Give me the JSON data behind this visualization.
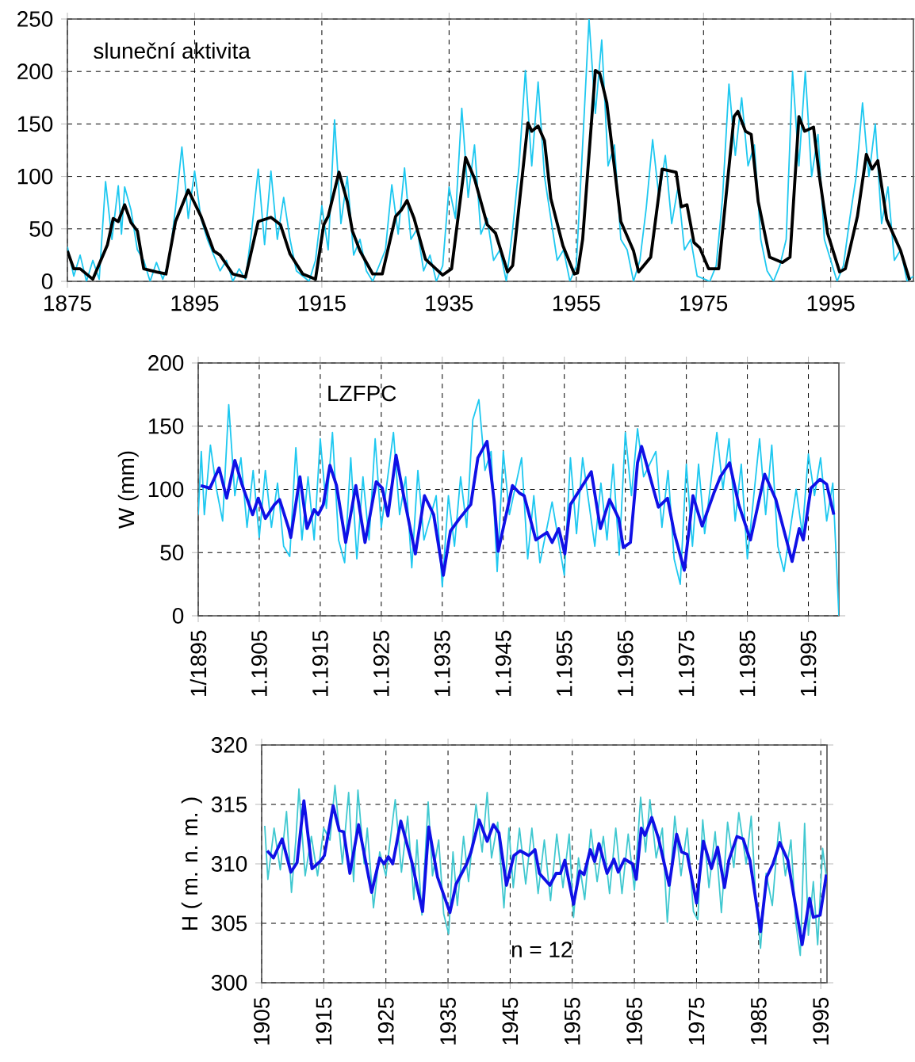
{
  "chart_data": [
    {
      "type": "line",
      "annotations": [
        "sluneční aktivita"
      ],
      "xlim": [
        1875,
        2008
      ],
      "xticks": [
        1875,
        1895,
        1915,
        1935,
        1955,
        1975,
        1995
      ],
      "ylim": [
        0,
        250
      ],
      "yticks": [
        0,
        50,
        100,
        150,
        200,
        250
      ],
      "grid": true,
      "series": [
        {
          "color": "#1ec8f0",
          "x": [
            1875,
            1876,
            1877,
            1878,
            1879,
            1880,
            1881,
            1882,
            1883,
            1883.5,
            1884,
            1885,
            1886,
            1887,
            1888,
            1889,
            1890,
            1891,
            1892,
            1893,
            1894,
            1895,
            1896,
            1897,
            1898,
            1899,
            1900,
            1901,
            1902,
            1903,
            1904,
            1905,
            1906,
            1907,
            1908,
            1909,
            1910,
            1911,
            1913,
            1914,
            1915,
            1916,
            1917,
            1918,
            1919,
            1920,
            1921,
            1922,
            1923,
            1924,
            1925,
            1926,
            1927,
            1928,
            1929,
            1930,
            1931,
            1932,
            1933,
            1934,
            1935,
            1936,
            1937,
            1938,
            1939,
            1940,
            1941,
            1942,
            1943,
            1944,
            1945,
            1946,
            1947,
            1948,
            1949,
            1950,
            1951,
            1952,
            1953,
            1954,
            1955,
            1956,
            1957,
            1958,
            1959,
            1960,
            1961,
            1962,
            1963,
            1964,
            1965,
            1966,
            1967,
            1968,
            1969,
            1970,
            1971,
            1972,
            1973,
            1974,
            1976,
            1977,
            1978,
            1979,
            1980,
            1981,
            1982,
            1983,
            1984,
            1985,
            1986,
            1987,
            1988,
            1989,
            1990,
            1991,
            1992,
            1993,
            1994,
            1995,
            1996,
            1997,
            1998,
            1999,
            2000,
            2001,
            2002,
            2003,
            2004,
            2005,
            2006,
            2007,
            2008
          ],
          "values": [
            33,
            5,
            25,
            0,
            20,
            2,
            95,
            40,
            91,
            45,
            90,
            68,
            30,
            20,
            0,
            18,
            2,
            20,
            70,
            128,
            60,
            105,
            60,
            40,
            null,
            10,
            20,
            0,
            12,
            2,
            50,
            107,
            35,
            105,
            40,
            80,
            40,
            10,
            0,
            20,
            72,
            30,
            154,
            55,
            100,
            25,
            40,
            10,
            0,
            15,
            30,
            92,
            45,
            108,
            40,
            50,
            10,
            25,
            0,
            15,
            90,
            60,
            165,
            80,
            130,
            45,
            60,
            20,
            30,
            0,
            50,
            110,
            201,
            110,
            190,
            100,
            60,
            20,
            30,
            0,
            15,
            130,
            250,
            160,
            230,
            110,
            130,
            40,
            30,
            0,
            20,
            70,
            135,
            80,
            120,
            55,
            90,
            30,
            40,
            5,
            0,
            15,
            80,
            188,
            120,
            175,
            110,
            130,
            40,
            10,
            0,
            15,
            40,
            200,
            110,
            200,
            100,
            140,
            40,
            20,
            0,
            15,
            60,
            100,
            170,
            100,
            150,
            55,
            90,
            20,
            30,
            0,
            5
          ]
        },
        {
          "color": "#000000",
          "x": [
            1875,
            1876,
            1877,
            1879,
            1881.3,
            1882.2,
            1883,
            1884,
            1885,
            1886,
            1887,
            1889,
            1890.5,
            1892,
            1894,
            1896,
            1898,
            1899,
            1901,
            1903,
            1905,
            1907,
            1908.5,
            1910,
            1912,
            1914,
            1915.3,
            1916,
            1917.7,
            1919,
            1919.8,
            1921,
            1923,
            1924.5,
            1926.6,
            1927.5,
            1928.4,
            1929.5,
            1931.3,
            1934,
            1935.4,
            1937.6,
            1939,
            1941,
            1942.3,
            1944.2,
            1945,
            1947.4,
            1948,
            1949,
            1950,
            1951,
            1952.9,
            1954.7,
            1955.2,
            1956,
            1958,
            1958.7,
            1959.8,
            1962,
            1964,
            1964.8,
            1966.7,
            1968.5,
            1970.7,
            1971.5,
            1972.4,
            1973.5,
            1974.4,
            1975.8,
            1977.4,
            1979.8,
            1980.4,
            1981.6,
            1982.5,
            1983.6,
            1985.4,
            1987.4,
            1988.6,
            1990,
            1990.9,
            1992.3,
            1993.2,
            1994.5,
            1996.4,
            1997.3,
            1999.2,
            2000.6,
            2001.5,
            2002.4,
            2003.8,
            2006,
            2007.4
          ],
          "values": [
            29,
            12,
            12,
            2,
            35,
            60,
            57,
            73,
            56,
            48,
            12,
            9,
            7,
            57,
            87,
            62,
            29,
            25,
            7,
            4,
            57,
            61,
            54,
            26,
            7,
            2,
            54,
            62,
            104,
            76,
            48,
            29,
            7,
            7,
            62,
            68,
            77,
            60,
            21,
            6,
            12,
            118,
            98,
            54,
            46,
            9,
            15,
            151,
            143,
            148,
            134,
            79,
            34,
            7,
            8,
            40,
            201,
            198,
            170,
            57,
            29,
            9,
            23,
            107,
            104,
            71,
            73,
            37,
            32,
            12,
            12,
            157,
            162,
            143,
            140,
            76,
            23,
            18,
            23,
            157,
            143,
            147,
            101,
            46,
            9,
            12,
            62,
            121,
            107,
            115,
            59,
            29,
            1
          ]
        }
      ]
    },
    {
      "type": "line",
      "annotations": [
        "LZFPC"
      ],
      "ylabel": "W (mm)",
      "xlim": [
        "1895-01",
        "2000-01"
      ],
      "xticks": [
        {
          "value": "1895-01",
          "label": "1/1895"
        },
        {
          "value": "1905-01",
          "label": "1.1905"
        },
        {
          "value": "1915-01",
          "label": "1.1915"
        },
        {
          "value": "1925-01",
          "label": "1.1925"
        },
        {
          "value": "1935-01",
          "label": "1.1935"
        },
        {
          "value": "1945-01",
          "label": "1.1945"
        },
        {
          "value": "1955-01",
          "label": "1.1955"
        },
        {
          "value": "1965-01",
          "label": "1.1965"
        },
        {
          "value": "1975-01",
          "label": "1.1975"
        },
        {
          "value": "1985-01",
          "label": "1.1985"
        },
        {
          "value": "1995-01",
          "label": "1.1995"
        }
      ],
      "ylim": [
        0,
        200
      ],
      "yticks": [
        0,
        50,
        100,
        150,
        200
      ],
      "grid": true,
      "series": [
        {
          "color": "#1ec8f0",
          "x": [
            "1895-01",
            "1895-07",
            "1896-01",
            "1897-01",
            "1898-01",
            "1899-01",
            "1900-01",
            "1901-01",
            "1902-01",
            "1903-01",
            "1904-01",
            "1905-01",
            "1906-01",
            "1907-01",
            "1908-01",
            "1909-01",
            "1910-01",
            "1911-01",
            "1912-01",
            "1913-01",
            "1914-01",
            "1915-01",
            "1916-01",
            "1917-01",
            "1918-01",
            "1919-01",
            "1920-01",
            "1921-01",
            "1922-01",
            "1923-01",
            "1924-01",
            "1925-01",
            "1927-01",
            "1928-01",
            "1929-01",
            "1930-01",
            "1931-01",
            "1932-01",
            "1934-01",
            "1935-01",
            "1936-01",
            "1937-01",
            "1938-01",
            "1939-01",
            "1940-01",
            "1941-01",
            "1942-01",
            "1943-01",
            "1944-01",
            "1945-01",
            "1946-01",
            "1948-01",
            "1949-01",
            "1950-01",
            "1951-01",
            "1953-01",
            "1955-01",
            "1956-01",
            "1957-01",
            "1958-01",
            "1960-01",
            "1961-01",
            "1962-01",
            "1963-01",
            "1964-01",
            "1965-01",
            "1966-01",
            "1967-01",
            "1968-01",
            "1970-01",
            "1971-01",
            "1972-01",
            "1973-01",
            "1974-01",
            "1975-01",
            "1976-01",
            "1977-01",
            "1978-01",
            "1980-01",
            "1981-01",
            "1982-01",
            "1983-01",
            "1984-01",
            "1985-01",
            "1987-01",
            "1988-01",
            "1989-01",
            "1990-01",
            "1991-01",
            "1993-01",
            "1994-01",
            "1995-01",
            "1996-01",
            "1997-01",
            "1998-01",
            "1999-01",
            "2000-01"
          ],
          "values": [
            80,
            130,
            80,
            135,
            100,
            75,
            167,
            95,
            125,
            70,
            115,
            62,
            115,
            70,
            105,
            55,
            47,
            133,
            60,
            110,
            60,
            140,
            85,
            145,
            60,
            42,
            125,
            45,
            110,
            60,
            140,
            70,
            145,
            80,
            110,
            38,
            115,
            60,
            95,
            23,
            95,
            55,
            110,
            70,
            155,
            171,
            115,
            130,
            35,
            130,
            80,
            125,
            45,
            95,
            42,
            90,
            32,
            125,
            65,
            125,
            55,
            105,
            60,
            120,
            48,
            145,
            95,
            148,
            110,
            130,
            70,
            115,
            45,
            25,
            120,
            55,
            120,
            65,
            145,
            100,
            140,
            75,
            120,
            45,
            140,
            80,
            135,
            55,
            35,
            100,
            65,
            128,
            95,
            125,
            75,
            105,
            0
          ]
        },
        {
          "color": "#1010e6",
          "x": [
            "1895-06",
            "1896-12",
            "1898-06",
            "1899-09",
            "1901-01",
            "1902-03",
            "1903-12",
            "1904-11",
            "1906-01",
            "1907-07",
            "1908-05",
            "1909-11",
            "1910-03",
            "1911-09",
            "1912-11",
            "1914-01",
            "1914-09",
            "1915-07",
            "1916-08",
            "1917-09",
            "1919-03",
            "1920-11",
            "1922-05",
            "1924-03",
            "1925-03",
            "1926-02",
            "1927-06",
            "1928-09",
            "1930-08",
            "1932-02",
            "1933-08",
            "1935-03",
            "1936-05",
            "1937-11",
            "1939-09",
            "1940-11",
            "1942-05",
            "1943-07",
            "1944-03",
            "1946-07",
            "1947-09",
            "1948-06",
            "1950-05",
            "1952-03",
            "1953-01",
            "1954-02",
            "1955-02",
            "1956-01",
            "1959-06",
            "1960-12",
            "1962-06",
            "1963-12",
            "1964-09",
            "1965-11",
            "1967-01",
            "1967-09",
            "1970-06",
            "1971-12",
            "1973-01",
            "1974-09",
            "1976-02",
            "1977-08",
            "1979-07",
            "1980-08",
            "1982-02",
            "1983-08",
            "1985-07",
            "1987-11",
            "1989-09",
            "1992-05",
            "1993-07",
            "1994-03",
            "1995-06",
            "1996-12",
            "1998-01",
            "1999-03"
          ],
          "values": [
            103,
            101,
            117,
            93,
            123,
            104,
            80,
            93,
            77,
            88,
            92,
            69,
            62,
            110,
            69,
            84,
            80,
            88,
            119,
            103,
            58,
            103,
            58,
            106,
            101,
            79,
            127,
            95,
            49,
            95,
            80,
            32,
            67,
            77,
            88,
            125,
            138,
            91,
            51,
            103,
            97,
            95,
            60,
            66,
            58,
            69,
            49,
            88,
            114,
            69,
            92,
            77,
            54,
            58,
            121,
            134,
            86,
            93,
            66,
            36,
            95,
            71,
            97,
            110,
            121,
            88,
            60,
            112,
            92,
            43,
            69,
            60,
            101,
            108,
            104,
            80
          ]
        }
      ]
    },
    {
      "type": "line",
      "annotations": [
        "n = 12"
      ],
      "ylabel": "H ( m. n. m. )",
      "xlim": [
        1905,
        1996
      ],
      "xticks": [
        1905,
        1915,
        1925,
        1935,
        1945,
        1955,
        1965,
        1975,
        1985,
        1995
      ],
      "ylim": [
        300,
        320
      ],
      "yticks": [
        300,
        305,
        310,
        315,
        320
      ],
      "grid": true,
      "series": [
        {
          "color": "#40c8d0",
          "x": [
            1905.5,
            1906,
            1907,
            1908,
            1909,
            1909.8,
            1910.5,
            1911,
            1912,
            1913,
            1914,
            1915,
            1916,
            1916.8,
            1918,
            1919,
            1919.8,
            1920.5,
            1921.5,
            1922,
            1923,
            1924,
            1925,
            1926.5,
            1927.5,
            1928.5,
            1929.5,
            1930,
            1930.8,
            1931.8,
            1932.5,
            1933.5,
            1934.3,
            1935.1,
            1935.8,
            1936.5,
            1937.5,
            1938.3,
            1939.5,
            1940.5,
            1941.3,
            1942,
            1943,
            1944,
            1944.8,
            1945.5,
            1946.5,
            1947.5,
            1948.5,
            1949.5,
            1950.5,
            1951.5,
            1952.5,
            1953.5,
            1954.5,
            1955.2,
            1956,
            1957,
            1958,
            1959,
            1960,
            1961,
            1962,
            1963,
            1964,
            1965,
            1966,
            1966.8,
            1967.5,
            1968.5,
            1969.5,
            1970.3,
            1971.5,
            1972.5,
            1973.5,
            1974.5,
            1975.2,
            1976,
            1977,
            1978,
            1979,
            1980,
            1981,
            1981.8,
            1983,
            1983.8,
            1984.5,
            1985.3,
            1986.2,
            1987.2,
            1988.3,
            1989.3,
            1990.2,
            1991,
            1991.7,
            1992.4,
            1993,
            1993.8,
            1994.5,
            1995.3,
            1996
          ],
          "values": [
            313.2,
            308.7,
            313,
            309.5,
            314.4,
            307.6,
            312,
            316.3,
            309,
            312.3,
            309,
            313,
            312,
            316.6,
            310,
            316,
            308.5,
            316.2,
            310,
            313,
            306.3,
            311,
            309,
            315.4,
            309.3,
            314,
            307,
            312,
            305.7,
            315.2,
            309,
            312,
            305.8,
            304.1,
            311,
            306.5,
            312.3,
            308.5,
            315,
            311,
            316,
            310.5,
            313.5,
            306.3,
            313,
            308,
            313,
            308.3,
            313,
            307.5,
            312,
            306.9,
            312.5,
            308,
            312.5,
            305.5,
            310.5,
            307,
            312.9,
            308.5,
            312.3,
            307.5,
            313,
            307.5,
            312.5,
            307.8,
            315.6,
            311,
            315.4,
            310.5,
            313,
            305.1,
            314,
            309,
            313,
            306,
            305.3,
            313.7,
            308,
            312.7,
            305.9,
            313.5,
            309.7,
            314.3,
            310,
            314,
            307.5,
            302.9,
            309.2,
            306.5,
            313.5,
            309,
            312,
            305,
            302.3,
            313.4,
            304,
            308.5,
            303.2,
            311.3,
            308.5
          ]
        },
        {
          "color": "#1010e6",
          "x": [
            1905.9,
            1906.9,
            1908.3,
            1909.7,
            1910.7,
            1911.8,
            1913.1,
            1914.4,
            1915.1,
            1916.5,
            1917.5,
            1918.2,
            1919.2,
            1920.6,
            1922.7,
            1924,
            1924.7,
            1925.4,
            1926.1,
            1927.4,
            1929.2,
            1930.9,
            1931.9,
            1933.3,
            1935.3,
            1936.3,
            1938,
            1938.7,
            1940,
            1941.3,
            1942.3,
            1943.2,
            1944.4,
            1945.6,
            1946.6,
            1948,
            1949,
            1949.7,
            1951.4,
            1952.4,
            1953.1,
            1953.8,
            1955.2,
            1956.2,
            1956.9,
            1957.9,
            1958.6,
            1959.3,
            1960.6,
            1961.7,
            1962.4,
            1963.4,
            1964.7,
            1965.3,
            1966.1,
            1966.7,
            1967.8,
            1968.9,
            1970.6,
            1971.8,
            1972.6,
            1973.5,
            1975,
            1976.1,
            1977.4,
            1978.4,
            1979.5,
            1980.2,
            1981.5,
            1982.5,
            1983.6,
            1985.3,
            1986.3,
            1987.3,
            1988.4,
            1989.7,
            1992,
            1993.2,
            1993.8,
            1994.9,
            1995.9
          ],
          "values": [
            311.1,
            310.5,
            312.1,
            309.3,
            310.1,
            315.3,
            309.6,
            310.2,
            310.7,
            314.9,
            312.8,
            312.7,
            309.2,
            313.3,
            307.6,
            310.5,
            310,
            310.6,
            310,
            313.6,
            310.1,
            306,
            313.1,
            308.9,
            305.9,
            308.3,
            310,
            311,
            313.7,
            311.9,
            313.3,
            312.6,
            308.2,
            310.7,
            311.1,
            310.7,
            311.2,
            309.2,
            308.2,
            309.2,
            309.2,
            310.3,
            306.6,
            309.4,
            309.1,
            311.2,
            310.2,
            311.7,
            309.2,
            310.4,
            309.3,
            310.4,
            310,
            308.7,
            313,
            312.4,
            313.9,
            312.1,
            308.2,
            312.5,
            311,
            310.8,
            306.7,
            311.9,
            309.6,
            311.4,
            308,
            310.3,
            312.3,
            312.1,
            310.3,
            304.3,
            308.9,
            310,
            311.8,
            310.3,
            303.2,
            307.1,
            305.5,
            305.7,
            309.1
          ]
        }
      ]
    }
  ]
}
